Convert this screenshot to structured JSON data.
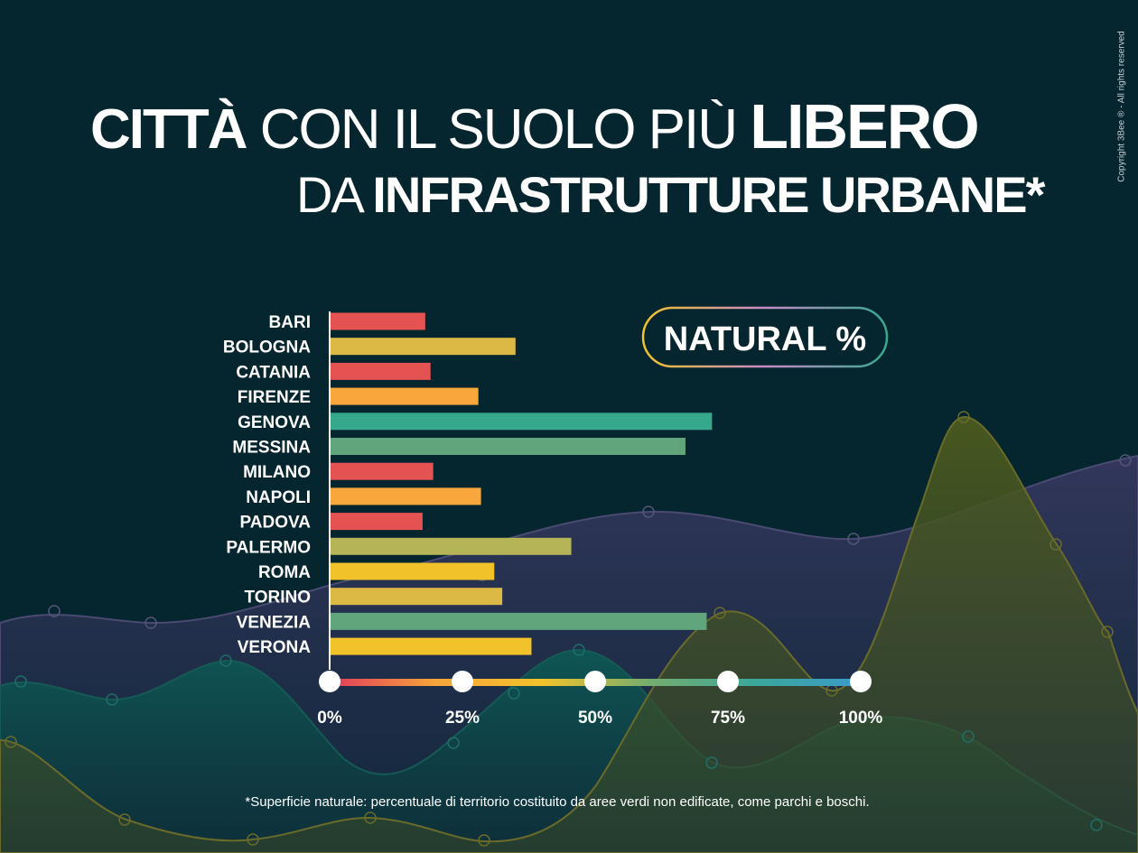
{
  "title": {
    "line1": [
      {
        "text": "CITTÀ",
        "weight": "bold"
      },
      {
        "text": " CON IL SUOLO PIÙ ",
        "weight": "light"
      },
      {
        "text": "LIBERO",
        "weight": "bold-big"
      }
    ],
    "line2": [
      {
        "text": "DA ",
        "weight": "light"
      },
      {
        "text": "INFRASTRUTTURE URBANE*",
        "weight": "bold"
      }
    ]
  },
  "copyright": "Copyright 3Bee ® - All rights reserved",
  "footnote": "*Superficie naturale: percentuale di territorio costituito da aree verdi non edificate, come parchi e boschi.",
  "chart_data": {
    "type": "bar",
    "orientation": "horizontal",
    "legend_label": "NATURAL %",
    "categories": [
      "BARI",
      "BOLOGNA",
      "CATANIA",
      "FIRENZE",
      "GENOVA",
      "MESSINA",
      "MILANO",
      "NAPOLI",
      "PADOVA",
      "PALERMO",
      "ROMA",
      "TORINO",
      "VENEZIA",
      "VERONA"
    ],
    "values": [
      18,
      35,
      19,
      28,
      72,
      67,
      19.5,
      28.5,
      17.5,
      45.5,
      31,
      32.5,
      71,
      38
    ],
    "bar_colors": [
      "#e55252",
      "#dcb945",
      "#e55252",
      "#f8a83b",
      "#36a98d",
      "#60a57c",
      "#e55252",
      "#f8a83b",
      "#e55252",
      "#b5b457",
      "#f2c22b",
      "#dcb945",
      "#60a57c",
      "#f2c22b"
    ],
    "xlim": [
      0,
      100
    ],
    "xticks": [
      "0%",
      "25%",
      "50%",
      "75%",
      "100%"
    ],
    "xtick_values": [
      0,
      25,
      50,
      75,
      100
    ],
    "scale_gradient": [
      "#e23a5c",
      "#f5a53a",
      "#f2c22b",
      "#76ad6e",
      "#3aa79a",
      "#3c9bc9"
    ]
  }
}
